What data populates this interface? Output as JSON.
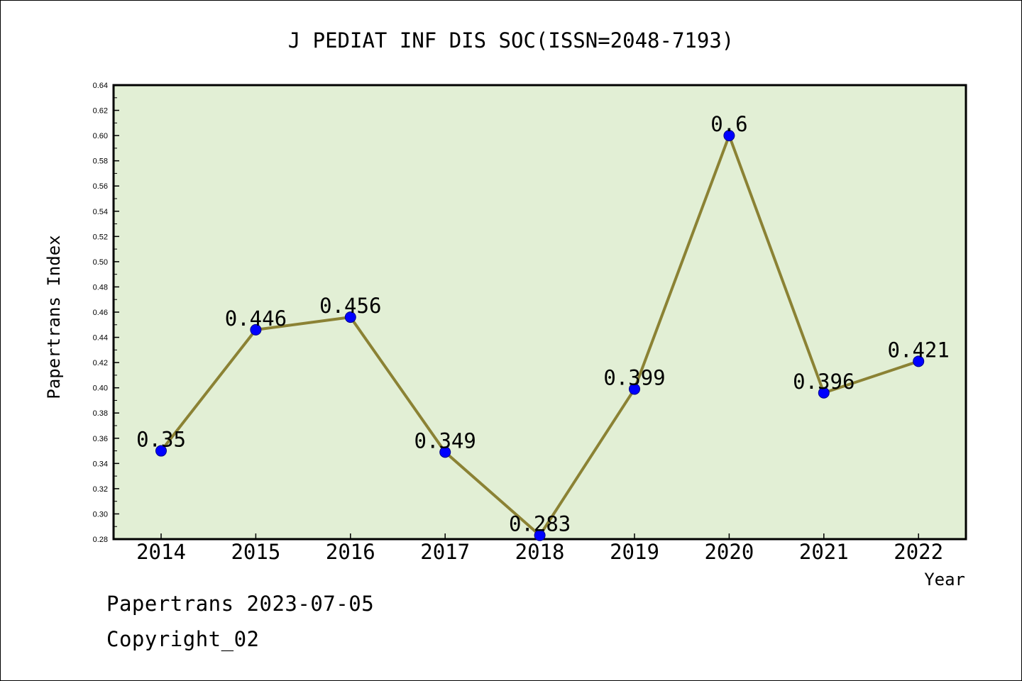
{
  "chart_data": {
    "type": "line",
    "title": "J PEDIAT INF DIS SOC(ISSN=2048-7193)",
    "xlabel": "Year",
    "ylabel": "Papertrans Index",
    "categories": [
      "2014",
      "2015",
      "2016",
      "2017",
      "2018",
      "2019",
      "2020",
      "2021",
      "2022"
    ],
    "values": [
      0.35,
      0.446,
      0.456,
      0.349,
      0.283,
      0.399,
      0.6,
      0.396,
      0.421
    ],
    "data_labels": [
      "0.35",
      "0.446",
      "0.456",
      "0.349",
      "0.283",
      "0.399",
      "0.6",
      "0.396",
      "0.421"
    ],
    "ylim": [
      0.28,
      0.64
    ],
    "yticks": [
      "0.28",
      "0.30",
      "0.32",
      "0.34",
      "0.36",
      "0.38",
      "0.40",
      "0.42",
      "0.44",
      "0.46",
      "0.48",
      "0.50",
      "0.52",
      "0.54",
      "0.56",
      "0.58",
      "0.60",
      "0.62",
      "0.64"
    ],
    "grid": false,
    "colors": {
      "plot_background": "#e2efd5",
      "line": "#8b8234",
      "marker": "#0000ff"
    }
  },
  "footer": {
    "line1": "Papertrans 2023-07-05",
    "line2": "Copyright_02"
  }
}
